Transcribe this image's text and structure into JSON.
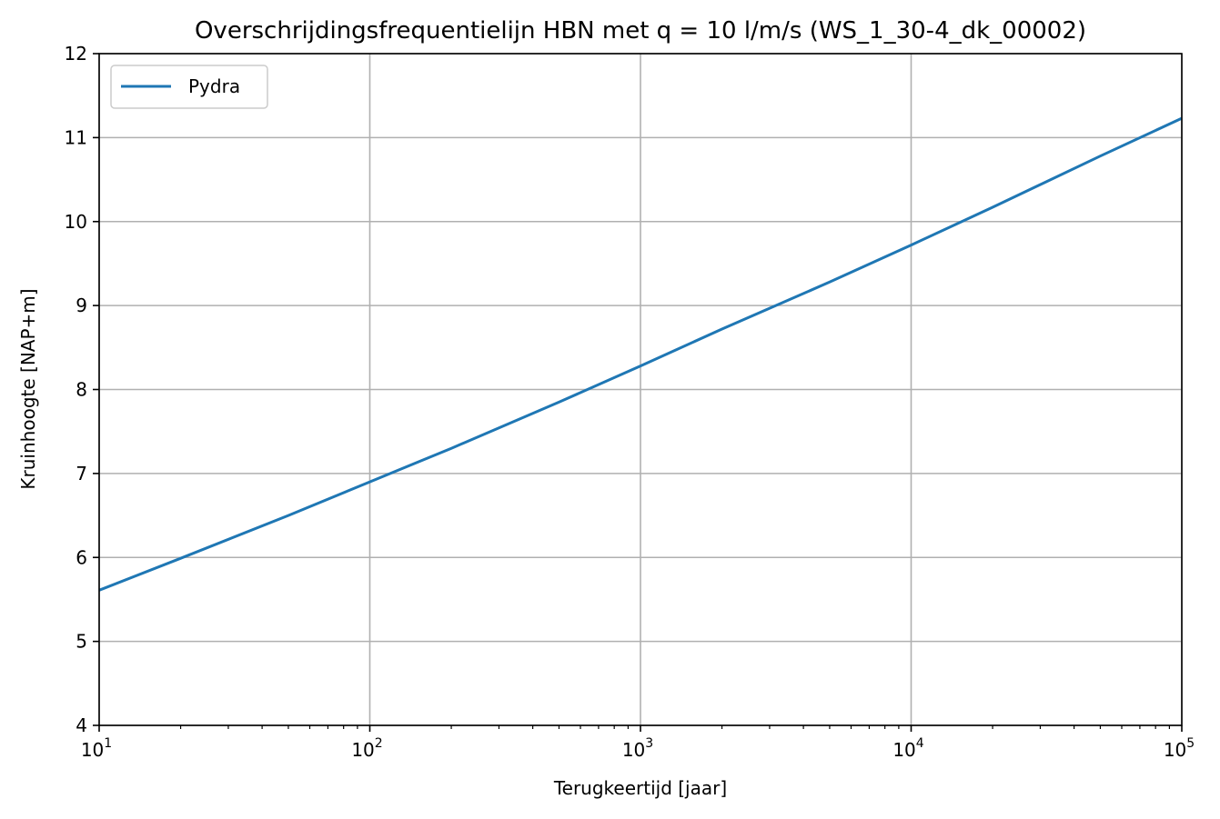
{
  "chart_data": {
    "type": "line",
    "title": "Overschrijdingsfrequentielijn HBN met q = 10 l/m/s (WS_1_30-4_dk_00002)",
    "xlabel": "Terugkeertijd [jaar]",
    "ylabel": "Kruinhoogte [NAP+m]",
    "xscale": "log",
    "xlim": [
      10,
      100000
    ],
    "ylim": [
      4,
      12
    ],
    "x_ticks": [
      {
        "value": 10,
        "base": "10",
        "exp": "1"
      },
      {
        "value": 100,
        "base": "10",
        "exp": "2"
      },
      {
        "value": 1000,
        "base": "10",
        "exp": "3"
      },
      {
        "value": 10000,
        "base": "10",
        "exp": "4"
      },
      {
        "value": 100000,
        "base": "10",
        "exp": "5"
      }
    ],
    "y_ticks": [
      "4",
      "5",
      "6",
      "7",
      "8",
      "9",
      "10",
      "11",
      "12"
    ],
    "grid": true,
    "legend": {
      "position": "upper-left",
      "entries": [
        "Pydra"
      ]
    },
    "series": [
      {
        "name": "Pydra",
        "color": "#1f77b4",
        "x": [
          10,
          20,
          50,
          100,
          200,
          500,
          1000,
          2000,
          5000,
          10000,
          20000,
          50000,
          100000
        ],
        "y": [
          5.61,
          5.99,
          6.5,
          6.9,
          7.3,
          7.85,
          8.28,
          8.72,
          9.28,
          9.72,
          10.17,
          10.78,
          11.23
        ]
      }
    ]
  }
}
